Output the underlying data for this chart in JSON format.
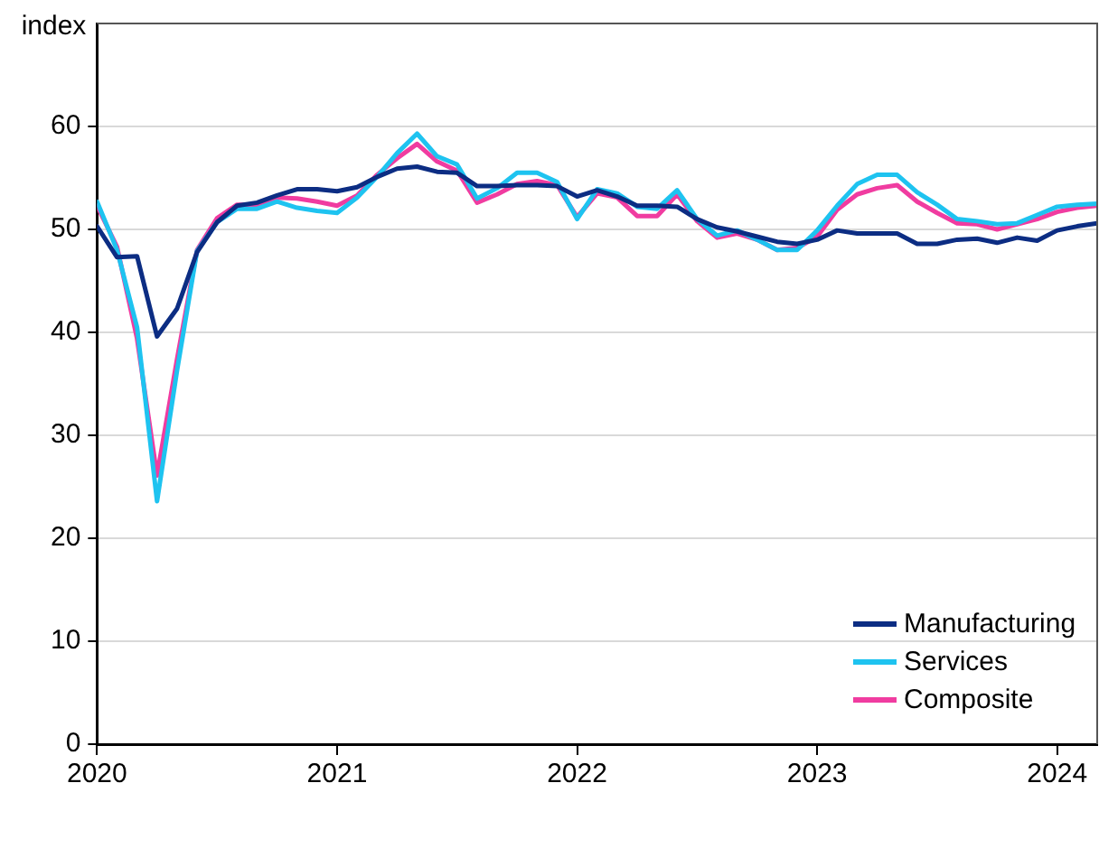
{
  "chart_data": {
    "type": "line",
    "ylabel": "index",
    "x": [
      "2020-01",
      "2020-02",
      "2020-03",
      "2020-04",
      "2020-05",
      "2020-06",
      "2020-07",
      "2020-08",
      "2020-09",
      "2020-10",
      "2020-11",
      "2020-12",
      "2021-01",
      "2021-02",
      "2021-03",
      "2021-04",
      "2021-05",
      "2021-06",
      "2021-07",
      "2021-08",
      "2021-09",
      "2021-10",
      "2021-11",
      "2021-12",
      "2022-01",
      "2022-02",
      "2022-03",
      "2022-04",
      "2022-05",
      "2022-06",
      "2022-07",
      "2022-08",
      "2022-09",
      "2022-10",
      "2022-11",
      "2022-12",
      "2023-01",
      "2023-02",
      "2023-03",
      "2023-04",
      "2023-05",
      "2023-06",
      "2023-07",
      "2023-08",
      "2023-09",
      "2023-10",
      "2023-11",
      "2023-12",
      "2024-01",
      "2024-02",
      "2024-03"
    ],
    "series": [
      {
        "name": "Manufacturing",
        "color": "#0c2d83",
        "values": [
          50.3,
          47.3,
          47.4,
          39.6,
          42.3,
          47.8,
          50.7,
          52.3,
          52.6,
          53.3,
          53.9,
          53.9,
          53.7,
          54.1,
          55.1,
          55.9,
          56.1,
          55.6,
          55.5,
          54.2,
          54.2,
          54.3,
          54.3,
          54.2,
          53.2,
          53.8,
          53.2,
          52.3,
          52.3,
          52.2,
          51,
          50.2,
          49.8,
          49.3,
          48.8,
          48.6,
          49,
          49.9,
          49.6,
          49.6,
          49.6,
          48.6,
          48.6,
          49,
          49.1,
          48.7,
          49.2,
          48.9,
          49.9,
          50.3,
          50.6
        ]
      },
      {
        "name": "Services",
        "color": "#1ec3f0",
        "values": [
          52.7,
          48,
          40.5,
          23.6,
          36.3,
          47.9,
          50.7,
          52,
          52,
          52.7,
          52.1,
          51.8,
          51.6,
          53.1,
          55.1,
          57.4,
          59.3,
          57.1,
          56.3,
          53,
          54,
          55.5,
          55.5,
          54.6,
          51,
          53.9,
          53.5,
          52.2,
          52,
          53.8,
          51,
          49.4,
          49.9,
          49,
          48,
          48,
          49.9,
          52.3,
          54.4,
          55.3,
          55.3,
          53.6,
          52.4,
          51,
          50.8,
          50.5,
          50.6,
          51.4,
          52.2,
          52.4,
          52.5
        ]
      },
      {
        "name": "Composite",
        "color": "#f03ca0",
        "values": [
          52.3,
          48.3,
          39.4,
          26.1,
          37.4,
          48,
          51.1,
          52.4,
          52.4,
          53.1,
          53,
          52.7,
          52.3,
          53.3,
          55.3,
          56.9,
          58.3,
          56.6,
          55.7,
          52.6,
          53.4,
          54.4,
          54.7,
          54.3,
          51.2,
          53.5,
          53.1,
          51.3,
          51.3,
          53.4,
          50.8,
          49.2,
          49.6,
          49,
          48,
          48.2,
          49.3,
          51.9,
          53.4,
          54,
          54.3,
          52.7,
          51.6,
          50.6,
          50.5,
          50,
          50.5,
          51,
          51.7,
          52.1,
          52.3
        ]
      }
    ],
    "xlim": [
      "2020-01",
      "2024-03"
    ],
    "xticks": [
      "2020",
      "2021",
      "2022",
      "2023",
      "2024"
    ],
    "ylim": [
      0,
      70
    ],
    "yticks": [
      0,
      10,
      20,
      30,
      40,
      50,
      60
    ],
    "grid": "y",
    "legend": "bottom right",
    "marker": "none",
    "line_style": "solid"
  }
}
